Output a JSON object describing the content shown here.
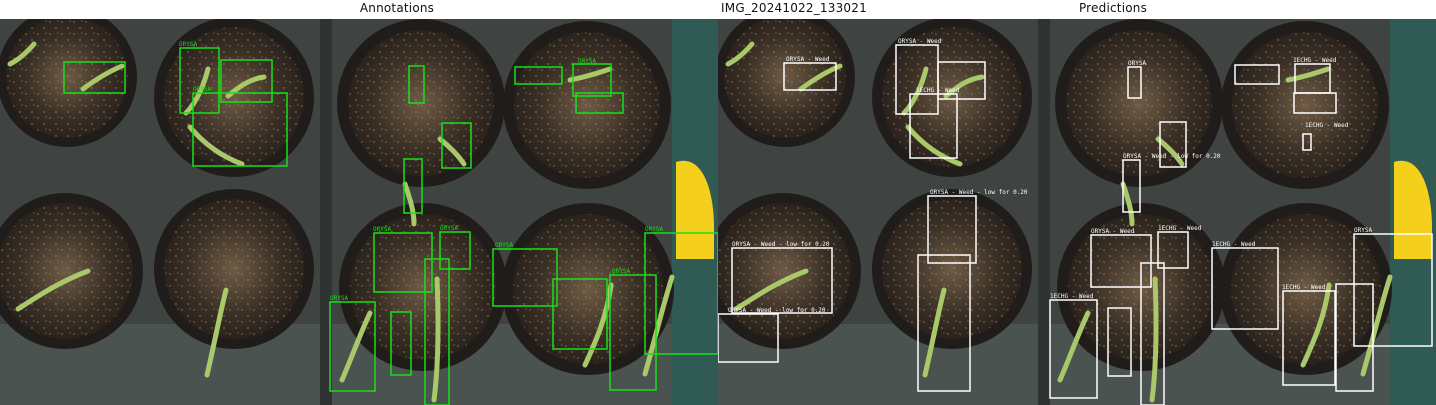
{
  "figure": {
    "left_title": "Annotations",
    "center_title": "IMG_20241022_133021",
    "right_title": "Predictions"
  },
  "colors": {
    "annotation_box": "#18e018",
    "prediction_box": "#ffffff",
    "soil_dark": "#2b2520",
    "soil_light": "#6e5c48",
    "tray": "#464a48",
    "leaf": "#a9c86a",
    "yellow_marker": "#f4cf1b",
    "teal_frame": "#2f5b54"
  },
  "annotations": {
    "labels": [
      "ORYSA",
      "ORYSA",
      "ORYSA",
      "ORYSA",
      "ORYSA",
      "ORYSA",
      "ORYSA",
      "ORYSA",
      "ORYSA"
    ]
  },
  "predictions": {
    "labels": [
      "ORYSA - Weed",
      "ORYSA - Weed",
      "1ECHG - Weed",
      "ORYSA - Weed - low for 0.20",
      "ORYSA - Weed - low for 0.20",
      "ORYSA - Weed - low for 0.20",
      "ORYSA",
      "1ECHG - Weed",
      "1ECHG - Weed",
      "ORYSA - Weed - low for 0.20",
      "ORYSA - Weed",
      "1ECHG - Weed",
      "1ECHG - Weed",
      "1ECHG - Weed",
      "1ECHG - Weed",
      "ORYSA"
    ]
  }
}
